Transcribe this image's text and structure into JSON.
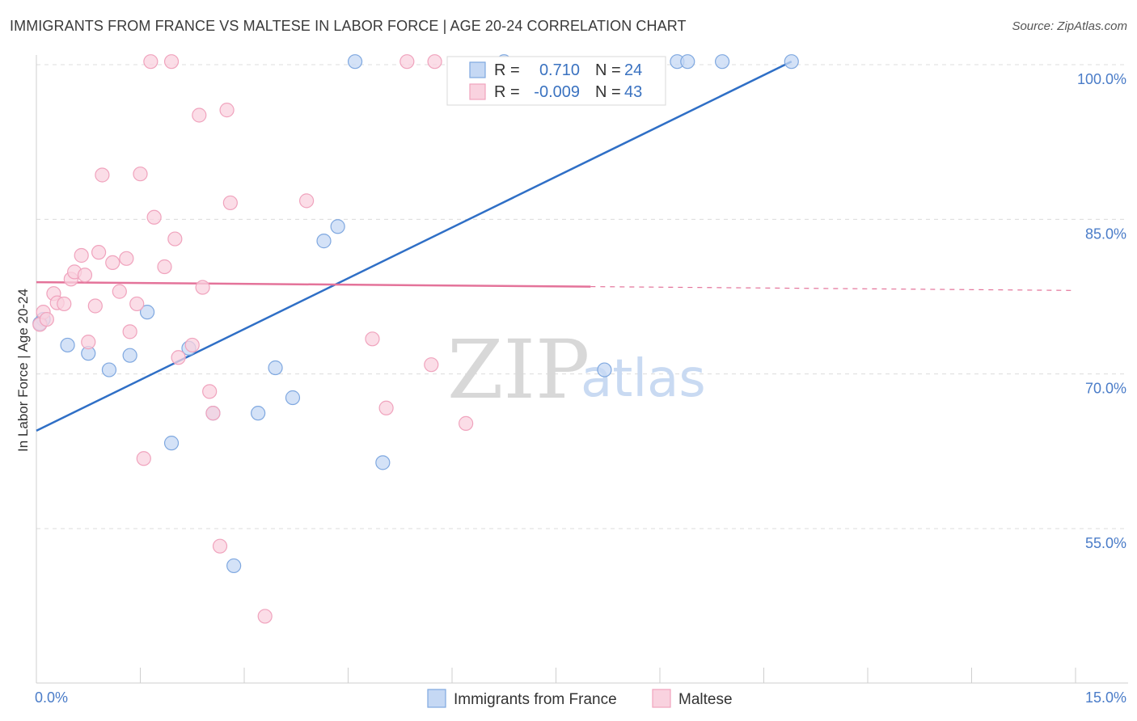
{
  "header": {
    "title": "IMMIGRANTS FROM FRANCE VS MALTESE IN LABOR FORCE | AGE 20-24 CORRELATION CHART",
    "source": "Source: ZipAtlas.com"
  },
  "watermark": {
    "part1": "ZIP",
    "part2": "atlas"
  },
  "legend": {
    "rows": [
      {
        "r_label": "R =",
        "r_value": "0.710",
        "n_label": "N =",
        "n_value": "24"
      },
      {
        "r_label": "R =",
        "r_value": "-0.009",
        "n_label": "N =",
        "n_value": "43"
      }
    ]
  },
  "chart_data": {
    "type": "scatter",
    "title": "IMMIGRANTS FROM FRANCE VS MALTESE IN LABOR FORCE | AGE 20-24 CORRELATION CHART",
    "xlabel": "",
    "ylabel": "In Labor Force | Age 20-24",
    "xlim": [
      0,
      15
    ],
    "ylim": [
      40,
      102
    ],
    "x_tick_labels": [
      "0.0%",
      "15.0%"
    ],
    "y_ticks": [
      55,
      70,
      85,
      100
    ],
    "y_tick_labels": [
      "55.0%",
      "70.0%",
      "85.0%",
      "100.0%"
    ],
    "grid": true,
    "legend_position": "top-center",
    "series": [
      {
        "name": "Immigrants from France",
        "color": "#7fa8e0",
        "fill": "#c5d8f4",
        "line_color": "#2f6fc6",
        "R": 0.71,
        "N": 24,
        "trend": {
          "x": [
            0.0,
            10.9
          ],
          "y": [
            64.5,
            100.3
          ],
          "dashed_from": null
        },
        "points": [
          [
            0.1,
            75.3
          ],
          [
            0.45,
            72.8
          ],
          [
            0.75,
            72.0
          ],
          [
            1.05,
            70.4
          ],
          [
            1.35,
            71.8
          ],
          [
            1.6,
            76.0
          ],
          [
            1.95,
            63.3
          ],
          [
            2.2,
            72.5
          ],
          [
            2.55,
            66.2
          ],
          [
            2.85,
            51.4
          ],
          [
            3.2,
            66.2
          ],
          [
            3.45,
            70.6
          ],
          [
            3.7,
            67.7
          ],
          [
            4.15,
            82.9
          ],
          [
            4.35,
            84.3
          ],
          [
            4.6,
            100.3
          ],
          [
            5.0,
            61.4
          ],
          [
            6.75,
            100.3
          ],
          [
            8.2,
            70.4
          ],
          [
            9.25,
            100.3
          ],
          [
            9.4,
            100.3
          ],
          [
            9.9,
            100.3
          ],
          [
            10.9,
            100.3
          ],
          [
            0.05,
            74.9
          ]
        ]
      },
      {
        "name": "Maltese",
        "color": "#f0a3bd",
        "fill": "#f9d2df",
        "line_color": "#e4739a",
        "R": -0.009,
        "N": 43,
        "trend": {
          "x": [
            0.0,
            15.0
          ],
          "y": [
            78.9,
            78.1
          ],
          "dashed_from": 8.0
        },
        "points": [
          [
            0.05,
            74.8
          ],
          [
            0.1,
            76.0
          ],
          [
            0.15,
            75.3
          ],
          [
            0.25,
            77.8
          ],
          [
            0.3,
            76.9
          ],
          [
            0.4,
            76.8
          ],
          [
            0.5,
            79.2
          ],
          [
            0.55,
            79.9
          ],
          [
            0.65,
            81.5
          ],
          [
            0.7,
            79.6
          ],
          [
            0.75,
            73.1
          ],
          [
            0.85,
            76.6
          ],
          [
            0.9,
            81.8
          ],
          [
            0.95,
            89.3
          ],
          [
            1.1,
            80.8
          ],
          [
            1.2,
            78.0
          ],
          [
            1.3,
            81.2
          ],
          [
            1.35,
            74.1
          ],
          [
            1.45,
            76.8
          ],
          [
            1.5,
            89.4
          ],
          [
            1.55,
            61.8
          ],
          [
            1.65,
            100.3
          ],
          [
            1.7,
            85.2
          ],
          [
            1.85,
            80.4
          ],
          [
            1.95,
            100.3
          ],
          [
            2.0,
            83.1
          ],
          [
            2.05,
            71.6
          ],
          [
            2.25,
            72.8
          ],
          [
            2.35,
            95.1
          ],
          [
            2.4,
            78.4
          ],
          [
            2.5,
            68.3
          ],
          [
            2.55,
            66.2
          ],
          [
            2.65,
            53.3
          ],
          [
            2.75,
            95.6
          ],
          [
            2.8,
            86.6
          ],
          [
            3.3,
            46.5
          ],
          [
            3.9,
            86.8
          ],
          [
            4.85,
            73.4
          ],
          [
            5.05,
            66.7
          ],
          [
            5.35,
            100.3
          ],
          [
            5.7,
            70.9
          ],
          [
            5.75,
            100.3
          ],
          [
            6.2,
            65.2
          ]
        ]
      }
    ]
  }
}
